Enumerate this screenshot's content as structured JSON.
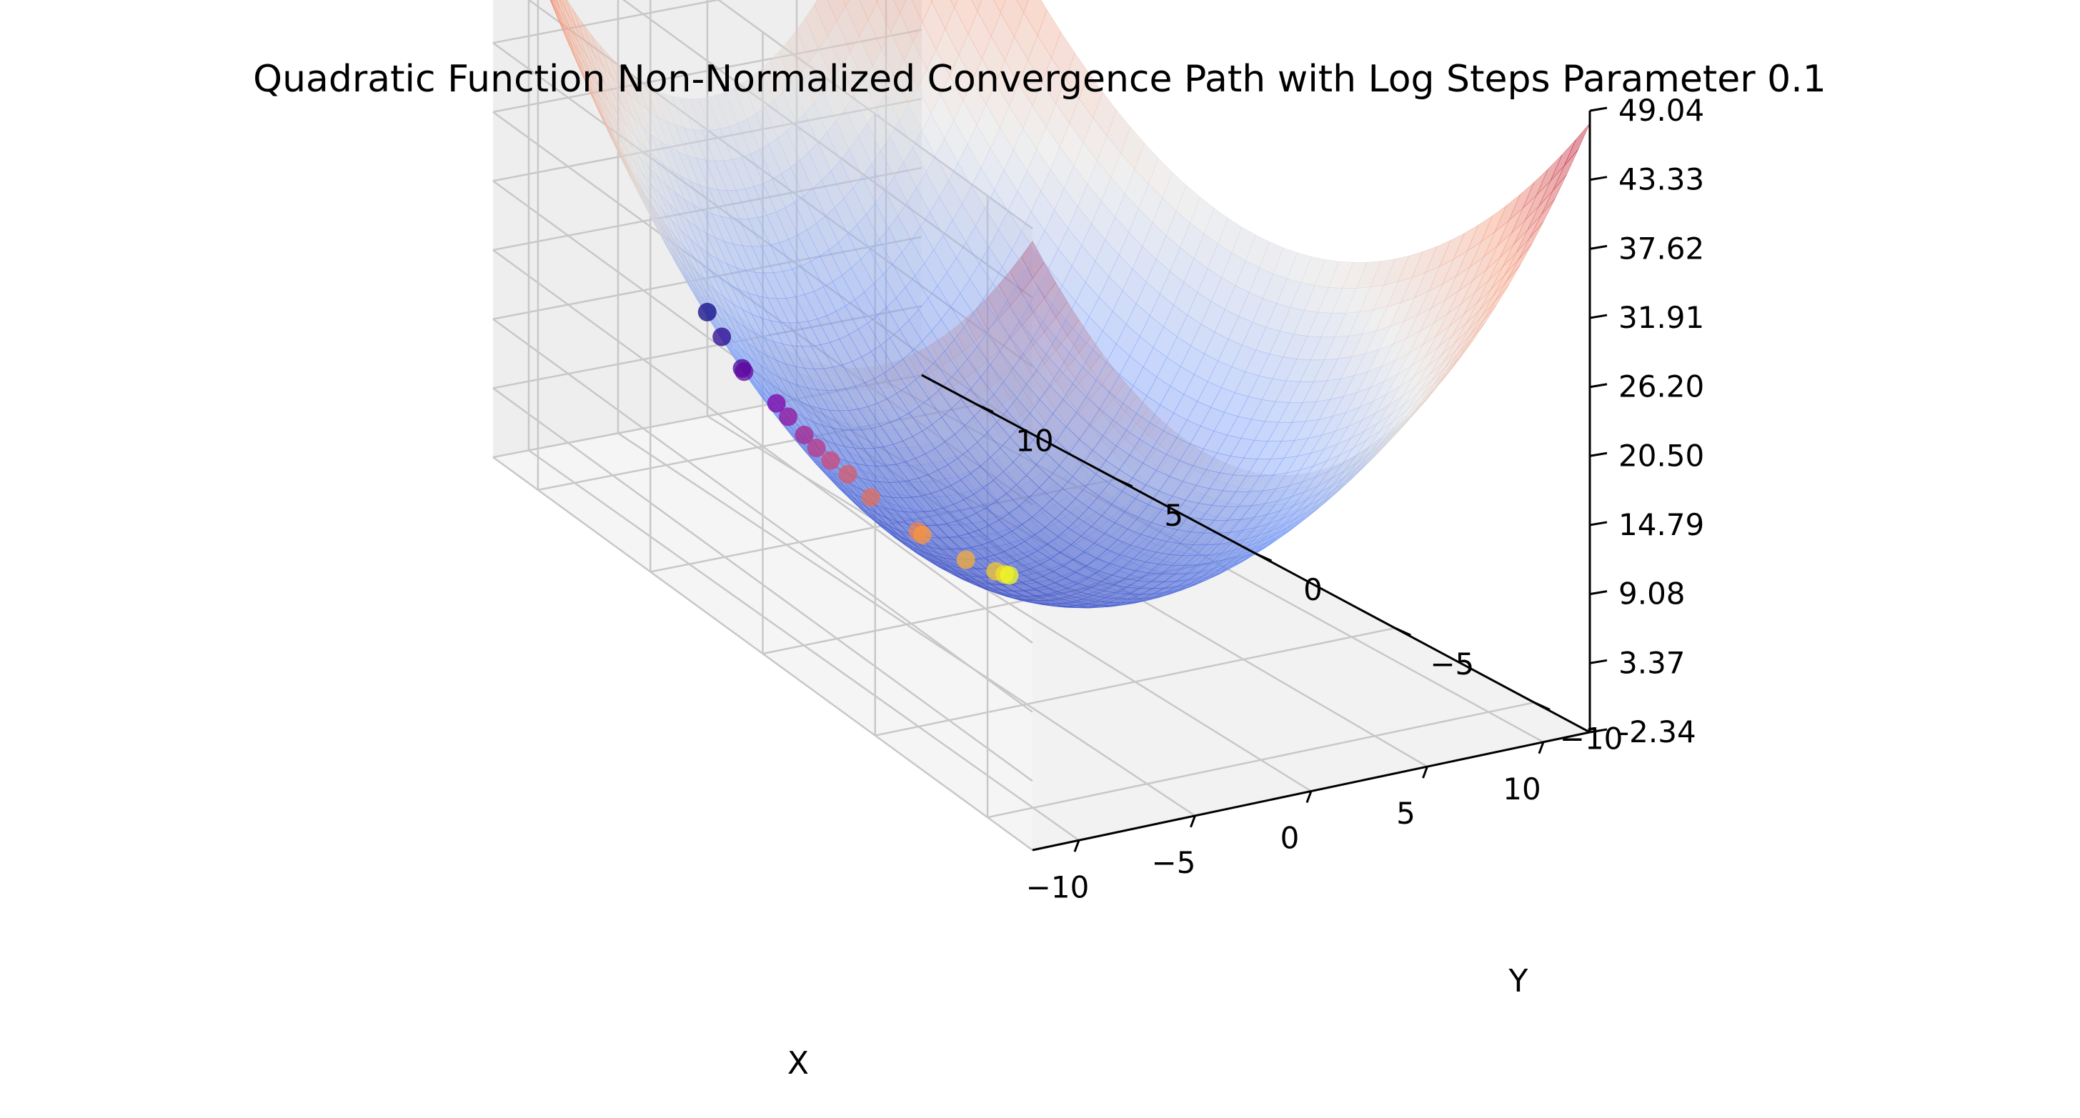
{
  "chart_data": {
    "type": "surface3d+scatter3d",
    "title": "Quadratic Function Non-Normalized Convergence Path with Log Steps Parameter 0.1",
    "xlabel": "X",
    "ylabel": "Y",
    "zlabel": "",
    "xlim": [
      -12,
      12
    ],
    "ylim": [
      -12,
      12
    ],
    "zlim": [
      -2.34,
      49.04
    ],
    "x_ticks": [
      -10,
      -5,
      0,
      5,
      10
    ],
    "x_tick_labels": [
      "−10",
      "−5",
      "0",
      "5",
      "10"
    ],
    "y_ticks": [
      -10,
      -5,
      0,
      5,
      10
    ],
    "y_tick_labels": [
      "−10",
      "−5",
      "0",
      "5",
      "10"
    ],
    "z_ticks": [
      -2.34,
      3.37,
      9.08,
      14.79,
      20.5,
      26.2,
      31.91,
      37.62,
      43.33,
      49.04
    ],
    "z_tick_labels": [
      "-2.34",
      "3.37",
      "9.08",
      "14.79",
      "20.50",
      "26.20",
      "31.91",
      "37.62",
      "43.33",
      "49.04"
    ],
    "surface": {
      "function": "z = (x^2 + y^2) / 6",
      "colormap": "coolwarm",
      "alpha": 0.45,
      "range": [
        -12,
        12
      ],
      "grid_steps": 48
    },
    "path": {
      "colormap": "plasma",
      "points": [
        {
          "x": -9.9,
          "y": 4.3,
          "z": 19.4
        },
        {
          "x": -8.8,
          "y": 4.6,
          "z": 16.6
        },
        {
          "x": -8.0,
          "y": 4.4,
          "z": 14.0
        },
        {
          "x": -7.9,
          "y": 4.4,
          "z": 13.7
        },
        {
          "x": -6.0,
          "y": 4.6,
          "z": 10.2
        },
        {
          "x": -5.4,
          "y": 4.6,
          "z": 8.9
        },
        {
          "x": -4.7,
          "y": 4.5,
          "z": 7.3
        },
        {
          "x": -4.2,
          "y": 4.4,
          "z": 6.2
        },
        {
          "x": -3.6,
          "y": 4.3,
          "z": 5.1
        },
        {
          "x": -3.1,
          "y": 4.0,
          "z": 4.2
        },
        {
          "x": -2.8,
          "y": 3.3,
          "z": 3.1
        },
        {
          "x": -1.8,
          "y": 2.2,
          "z": 1.4
        },
        {
          "x": -1.7,
          "y": 2.1,
          "z": 1.2
        },
        {
          "x": -0.9,
          "y": 1.0,
          "z": 0.3
        },
        {
          "x": -0.3,
          "y": 0.3,
          "z": 0.05
        },
        {
          "x": -0.1,
          "y": 0.1,
          "z": 0.01
        },
        {
          "x": 0.0,
          "y": 0.0,
          "z": 0.0
        }
      ]
    },
    "grid": true
  }
}
